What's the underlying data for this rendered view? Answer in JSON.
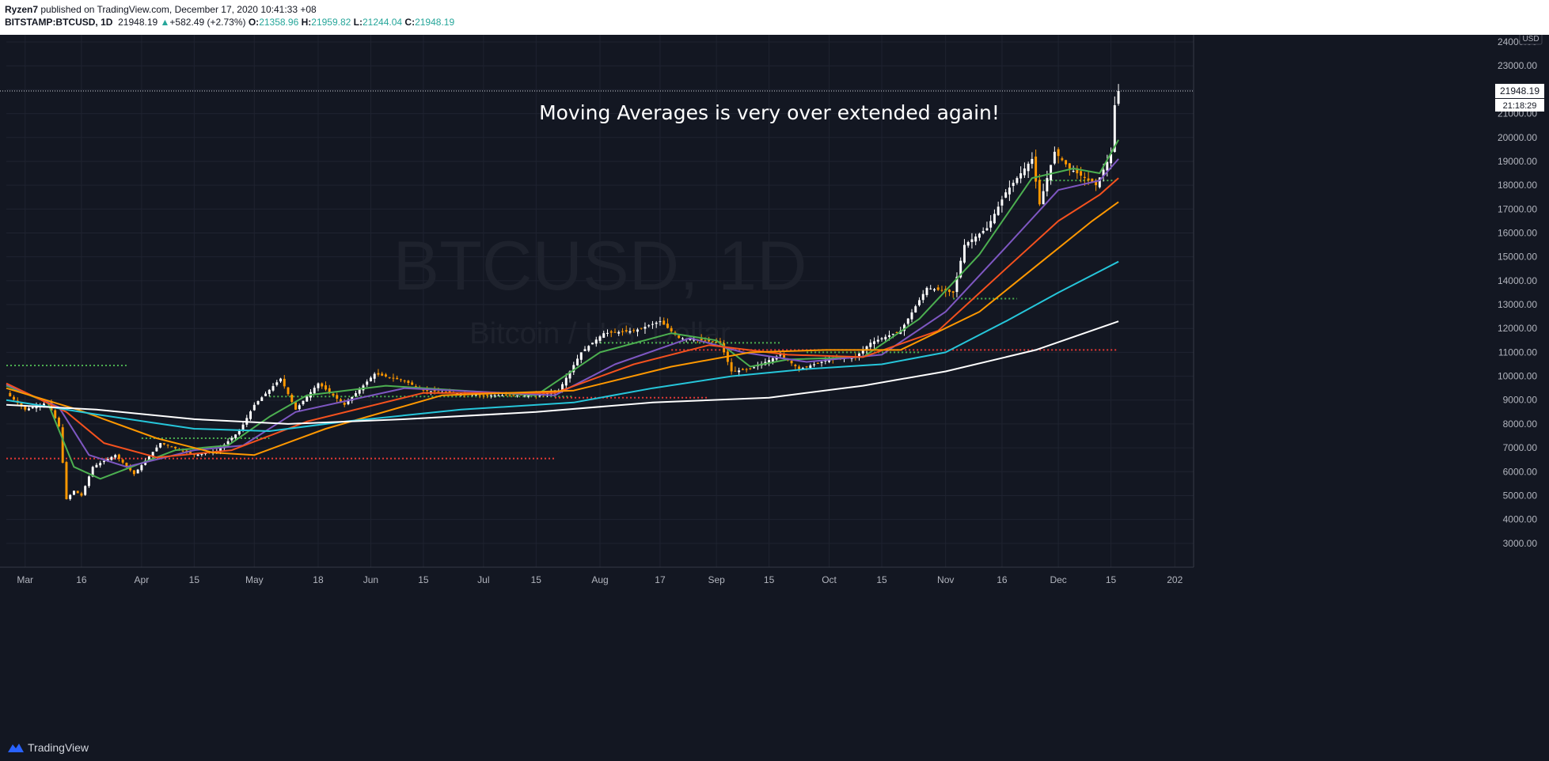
{
  "header": {
    "author": "Ryzen7",
    "published": " published on TradingView.com, December 17, 2020 10:41:33 +08",
    "symbol": "BITSTAMP:BTCUSD, 1D",
    "last": "21948.19",
    "change": "+582.49 (+2.73%)",
    "o_label": "O:",
    "o": "21358.96",
    "h_label": "H:",
    "h": "21959.82",
    "l_label": "L:",
    "l": "21244.04",
    "c_label": "C:",
    "c": "21948.19"
  },
  "footer": {
    "brand": "TradingView"
  },
  "chart_data": {
    "type": "candlestick",
    "annotation": "Moving Averages is very over extended again!",
    "watermark": {
      "line1": "BTCUSD, 1D",
      "line2": "Bitcoin / U.S. Dollar"
    },
    "currency": "USD",
    "ylim": [
      2000,
      24300
    ],
    "y_ticks": [
      3000,
      4000,
      5000,
      6000,
      7000,
      8000,
      9000,
      10000,
      11000,
      12000,
      13000,
      14000,
      15000,
      16000,
      17000,
      18000,
      19000,
      20000,
      21000,
      22000,
      23000,
      24000
    ],
    "y_tick_labels": [
      "3000.00",
      "4000.00",
      "5000.00",
      "6000.00",
      "7000.00",
      "8000.00",
      "9000.00",
      "10000.00",
      "11000.00",
      "12000.00",
      "13000.00",
      "14000.00",
      "15000.00",
      "16000.00",
      "17000.00",
      "18000.00",
      "19000.00",
      "20000.00",
      "21000.00",
      "22000.00",
      "23000.00",
      "24000.00"
    ],
    "x_start": "2020-02-25",
    "x_end": "2021-01-06",
    "x_ticks": [
      {
        "date": "2020-03-01",
        "label": "Mar"
      },
      {
        "date": "2020-03-16",
        "label": "16"
      },
      {
        "date": "2020-04-01",
        "label": "Apr"
      },
      {
        "date": "2020-04-15",
        "label": "15"
      },
      {
        "date": "2020-05-01",
        "label": "May"
      },
      {
        "date": "2020-05-18",
        "label": "18"
      },
      {
        "date": "2020-06-01",
        "label": "Jun"
      },
      {
        "date": "2020-06-15",
        "label": "15"
      },
      {
        "date": "2020-07-01",
        "label": "Jul"
      },
      {
        "date": "2020-07-15",
        "label": "15"
      },
      {
        "date": "2020-08-01",
        "label": "Aug"
      },
      {
        "date": "2020-08-17",
        "label": "17"
      },
      {
        "date": "2020-09-01",
        "label": "Sep"
      },
      {
        "date": "2020-09-15",
        "label": "15"
      },
      {
        "date": "2020-10-01",
        "label": "Oct"
      },
      {
        "date": "2020-10-15",
        "label": "15"
      },
      {
        "date": "2020-11-01",
        "label": "Nov"
      },
      {
        "date": "2020-11-16",
        "label": "16"
      },
      {
        "date": "2020-12-01",
        "label": "Dec"
      },
      {
        "date": "2020-12-15",
        "label": "15"
      },
      {
        "date": "2021-01-01",
        "label": "202"
      }
    ],
    "last_price": 21948.19,
    "last_price_label": "21948.19",
    "countdown": "21:18:29",
    "close_path": [
      {
        "date": "2020-02-25",
        "close": 9300
      },
      {
        "date": "2020-03-01",
        "close": 8600
      },
      {
        "date": "2020-03-07",
        "close": 8900
      },
      {
        "date": "2020-03-10",
        "close": 7900
      },
      {
        "date": "2020-03-12",
        "close": 4850
      },
      {
        "date": "2020-03-14",
        "close": 5200
      },
      {
        "date": "2020-03-16",
        "close": 5000
      },
      {
        "date": "2020-03-19",
        "close": 6200
      },
      {
        "date": "2020-03-25",
        "close": 6700
      },
      {
        "date": "2020-03-30",
        "close": 5900
      },
      {
        "date": "2020-04-06",
        "close": 7200
      },
      {
        "date": "2020-04-15",
        "close": 6700
      },
      {
        "date": "2020-04-21",
        "close": 6850
      },
      {
        "date": "2020-04-27",
        "close": 7700
      },
      {
        "date": "2020-05-01",
        "close": 8800
      },
      {
        "date": "2020-05-08",
        "close": 9900
      },
      {
        "date": "2020-05-12",
        "close": 8600
      },
      {
        "date": "2020-05-18",
        "close": 9700
      },
      {
        "date": "2020-05-25",
        "close": 8800
      },
      {
        "date": "2020-06-02",
        "close": 10100
      },
      {
        "date": "2020-06-10",
        "close": 9800
      },
      {
        "date": "2020-06-15",
        "close": 9400
      },
      {
        "date": "2020-07-01",
        "close": 9200
      },
      {
        "date": "2020-07-15",
        "close": 9200
      },
      {
        "date": "2020-07-21",
        "close": 9400
      },
      {
        "date": "2020-07-27",
        "close": 11000
      },
      {
        "date": "2020-08-02",
        "close": 11800
      },
      {
        "date": "2020-08-10",
        "close": 11900
      },
      {
        "date": "2020-08-17",
        "close": 12300
      },
      {
        "date": "2020-08-22",
        "close": 11600
      },
      {
        "date": "2020-08-28",
        "close": 11500
      },
      {
        "date": "2020-09-02",
        "close": 11400
      },
      {
        "date": "2020-09-05",
        "close": 10200
      },
      {
        "date": "2020-09-10",
        "close": 10300
      },
      {
        "date": "2020-09-18",
        "close": 10900
      },
      {
        "date": "2020-09-23",
        "close": 10300
      },
      {
        "date": "2020-10-01",
        "close": 10700
      },
      {
        "date": "2020-10-08",
        "close": 10800
      },
      {
        "date": "2020-10-12",
        "close": 11400
      },
      {
        "date": "2020-10-20",
        "close": 11900
      },
      {
        "date": "2020-10-27",
        "close": 13700
      },
      {
        "date": "2020-11-03",
        "close": 13500
      },
      {
        "date": "2020-11-06",
        "close": 15500
      },
      {
        "date": "2020-11-12",
        "close": 16200
      },
      {
        "date": "2020-11-17",
        "close": 17700
      },
      {
        "date": "2020-11-24",
        "close": 19100
      },
      {
        "date": "2020-11-26",
        "close": 17200
      },
      {
        "date": "2020-11-30",
        "close": 19400
      },
      {
        "date": "2020-12-04",
        "close": 18700
      },
      {
        "date": "2020-12-08",
        "close": 18300
      },
      {
        "date": "2020-12-11",
        "close": 18000
      },
      {
        "date": "2020-12-15",
        "close": 19300
      },
      {
        "date": "2020-12-16",
        "close": 21350
      },
      {
        "date": "2020-12-17",
        "close": 21948
      }
    ],
    "moving_averages": [
      {
        "color": "#4caf50",
        "points": [
          {
            "date": "2020-02-25",
            "value": 9600
          },
          {
            "date": "2020-03-07",
            "value": 8900
          },
          {
            "date": "2020-03-14",
            "value": 6200
          },
          {
            "date": "2020-03-21",
            "value": 5700
          },
          {
            "date": "2020-03-31",
            "value": 6300
          },
          {
            "date": "2020-04-10",
            "value": 6900
          },
          {
            "date": "2020-04-24",
            "value": 7100
          },
          {
            "date": "2020-05-05",
            "value": 8300
          },
          {
            "date": "2020-05-15",
            "value": 9200
          },
          {
            "date": "2020-06-05",
            "value": 9600
          },
          {
            "date": "2020-07-15",
            "value": 9200
          },
          {
            "date": "2020-08-01",
            "value": 11000
          },
          {
            "date": "2020-08-20",
            "value": 11800
          },
          {
            "date": "2020-09-01",
            "value": 11500
          },
          {
            "date": "2020-09-10",
            "value": 10400
          },
          {
            "date": "2020-09-20",
            "value": 10700
          },
          {
            "date": "2020-10-10",
            "value": 10800
          },
          {
            "date": "2020-10-25",
            "value": 12400
          },
          {
            "date": "2020-11-10",
            "value": 15100
          },
          {
            "date": "2020-11-24",
            "value": 18300
          },
          {
            "date": "2020-12-05",
            "value": 18700
          },
          {
            "date": "2020-12-12",
            "value": 18500
          },
          {
            "date": "2020-12-17",
            "value": 19900
          }
        ]
      },
      {
        "color": "#7e57c2",
        "points": [
          {
            "date": "2020-02-25",
            "value": 9650
          },
          {
            "date": "2020-03-10",
            "value": 8700
          },
          {
            "date": "2020-03-18",
            "value": 6700
          },
          {
            "date": "2020-03-28",
            "value": 6200
          },
          {
            "date": "2020-04-15",
            "value": 6900
          },
          {
            "date": "2020-04-28",
            "value": 7100
          },
          {
            "date": "2020-05-12",
            "value": 8500
          },
          {
            "date": "2020-06-10",
            "value": 9500
          },
          {
            "date": "2020-07-20",
            "value": 9200
          },
          {
            "date": "2020-08-05",
            "value": 10500
          },
          {
            "date": "2020-08-25",
            "value": 11600
          },
          {
            "date": "2020-09-08",
            "value": 11000
          },
          {
            "date": "2020-09-25",
            "value": 10600
          },
          {
            "date": "2020-10-15",
            "value": 10900
          },
          {
            "date": "2020-11-01",
            "value": 12700
          },
          {
            "date": "2020-11-17",
            "value": 15400
          },
          {
            "date": "2020-12-01",
            "value": 17800
          },
          {
            "date": "2020-12-12",
            "value": 18200
          },
          {
            "date": "2020-12-17",
            "value": 19100
          }
        ]
      },
      {
        "color": "#f4511e",
        "points": [
          {
            "date": "2020-02-25",
            "value": 9700
          },
          {
            "date": "2020-03-12",
            "value": 8500
          },
          {
            "date": "2020-03-22",
            "value": 7200
          },
          {
            "date": "2020-04-05",
            "value": 6600
          },
          {
            "date": "2020-04-25",
            "value": 6900
          },
          {
            "date": "2020-05-15",
            "value": 8100
          },
          {
            "date": "2020-06-15",
            "value": 9300
          },
          {
            "date": "2020-07-20",
            "value": 9300
          },
          {
            "date": "2020-08-10",
            "value": 10500
          },
          {
            "date": "2020-08-30",
            "value": 11300
          },
          {
            "date": "2020-09-20",
            "value": 10900
          },
          {
            "date": "2020-10-10",
            "value": 10800
          },
          {
            "date": "2020-10-30",
            "value": 11900
          },
          {
            "date": "2020-11-17",
            "value": 14500
          },
          {
            "date": "2020-12-01",
            "value": 16500
          },
          {
            "date": "2020-12-12",
            "value": 17600
          },
          {
            "date": "2020-12-17",
            "value": 18300
          }
        ]
      },
      {
        "color": "#ff9800",
        "points": [
          {
            "date": "2020-02-25",
            "value": 9500
          },
          {
            "date": "2020-03-15",
            "value": 8600
          },
          {
            "date": "2020-04-05",
            "value": 7400
          },
          {
            "date": "2020-04-20",
            "value": 6800
          },
          {
            "date": "2020-05-01",
            "value": 6700
          },
          {
            "date": "2020-05-20",
            "value": 7800
          },
          {
            "date": "2020-06-20",
            "value": 9200
          },
          {
            "date": "2020-07-25",
            "value": 9400
          },
          {
            "date": "2020-08-20",
            "value": 10400
          },
          {
            "date": "2020-09-10",
            "value": 11000
          },
          {
            "date": "2020-09-30",
            "value": 11100
          },
          {
            "date": "2020-10-20",
            "value": 11100
          },
          {
            "date": "2020-11-10",
            "value": 12700
          },
          {
            "date": "2020-11-25",
            "value": 14600
          },
          {
            "date": "2020-12-10",
            "value": 16500
          },
          {
            "date": "2020-12-17",
            "value": 17300
          }
        ]
      },
      {
        "color": "#26c6da",
        "points": [
          {
            "date": "2020-02-25",
            "value": 9000
          },
          {
            "date": "2020-03-20",
            "value": 8400
          },
          {
            "date": "2020-04-15",
            "value": 7800
          },
          {
            "date": "2020-05-05",
            "value": 7700
          },
          {
            "date": "2020-05-25",
            "value": 8100
          },
          {
            "date": "2020-06-25",
            "value": 8600
          },
          {
            "date": "2020-07-25",
            "value": 8900
          },
          {
            "date": "2020-08-15",
            "value": 9500
          },
          {
            "date": "2020-09-05",
            "value": 10000
          },
          {
            "date": "2020-09-25",
            "value": 10300
          },
          {
            "date": "2020-10-15",
            "value": 10500
          },
          {
            "date": "2020-11-01",
            "value": 11000
          },
          {
            "date": "2020-11-17",
            "value": 12300
          },
          {
            "date": "2020-12-01",
            "value": 13500
          },
          {
            "date": "2020-12-17",
            "value": 14800
          }
        ]
      },
      {
        "color": "#ffffff",
        "points": [
          {
            "date": "2020-02-25",
            "value": 8800
          },
          {
            "date": "2020-03-20",
            "value": 8600
          },
          {
            "date": "2020-04-15",
            "value": 8200
          },
          {
            "date": "2020-05-10",
            "value": 8000
          },
          {
            "date": "2020-06-10",
            "value": 8200
          },
          {
            "date": "2020-07-15",
            "value": 8500
          },
          {
            "date": "2020-08-15",
            "value": 8900
          },
          {
            "date": "2020-09-15",
            "value": 9100
          },
          {
            "date": "2020-10-10",
            "value": 9600
          },
          {
            "date": "2020-11-01",
            "value": 10200
          },
          {
            "date": "2020-11-25",
            "value": 11100
          },
          {
            "date": "2020-12-17",
            "value": 12300
          }
        ]
      }
    ],
    "dotted_levels": [
      {
        "color": "#4caf50",
        "value": 10450,
        "from": "2020-02-25",
        "to": "2020-03-28"
      },
      {
        "color": "#e53935",
        "value": 6550,
        "from": "2020-02-25",
        "to": "2020-07-20"
      },
      {
        "color": "#4caf50",
        "value": 7400,
        "from": "2020-04-01",
        "to": "2020-05-05"
      },
      {
        "color": "#4caf50",
        "value": 9150,
        "from": "2020-05-05",
        "to": "2020-07-25"
      },
      {
        "color": "#e53935",
        "value": 9100,
        "from": "2020-07-20",
        "to": "2020-08-30"
      },
      {
        "color": "#4caf50",
        "value": 11400,
        "from": "2020-08-01",
        "to": "2020-09-18"
      },
      {
        "color": "#4caf50",
        "value": 11000,
        "from": "2020-09-25",
        "to": "2020-10-25"
      },
      {
        "color": "#e53935",
        "value": 11100,
        "from": "2020-08-20",
        "to": "2020-12-17"
      },
      {
        "color": "#4caf50",
        "value": 13250,
        "from": "2020-11-03",
        "to": "2020-11-20"
      },
      {
        "color": "#4caf50",
        "value": 18200,
        "from": "2020-11-26",
        "to": "2020-12-17"
      }
    ]
  }
}
